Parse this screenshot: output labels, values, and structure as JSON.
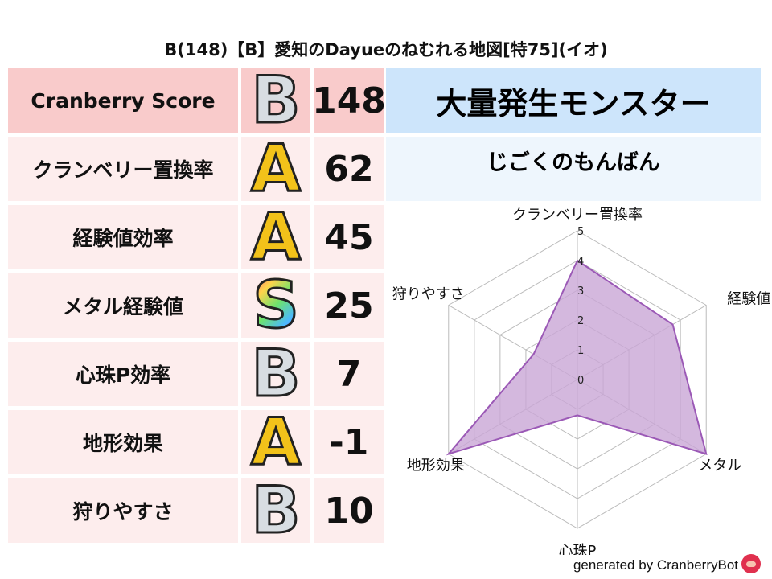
{
  "title": "B(148)【B】愛知のDayueのねむれる地図[特75](イオ)",
  "score_table": [
    {
      "label": "Cranberry Score",
      "grade": "B",
      "score": "148"
    },
    {
      "label": "クランベリー置換率",
      "grade": "A",
      "score": "62"
    },
    {
      "label": "経験値効率",
      "grade": "A",
      "score": "45"
    },
    {
      "label": "メタル経験値",
      "grade": "S",
      "score": "25"
    },
    {
      "label": "心珠P効率",
      "grade": "B",
      "score": "7"
    },
    {
      "label": "地形効果",
      "grade": "A",
      "score": "-1"
    },
    {
      "label": "狩りやすさ",
      "grade": "B",
      "score": "10"
    }
  ],
  "monster_panel": {
    "heading": "大量発生モンスター",
    "monster": "じごくのもんばん"
  },
  "chart_data": {
    "type": "radar",
    "axes": [
      "クランベリー置換率",
      "経験値",
      "メタル",
      "心珠P",
      "地形効果",
      "狩りやすさ"
    ],
    "values": [
      4.0,
      3.7,
      5.0,
      1.2,
      5.0,
      1.7
    ],
    "range": [
      0,
      5
    ],
    "ticks": [
      "0",
      "1",
      "2",
      "3",
      "4",
      "5"
    ],
    "fill_color": "#c9a6d6",
    "line_color": "#9b59b6",
    "grid": true
  },
  "footer": {
    "text": "generated by CranberryBot"
  }
}
